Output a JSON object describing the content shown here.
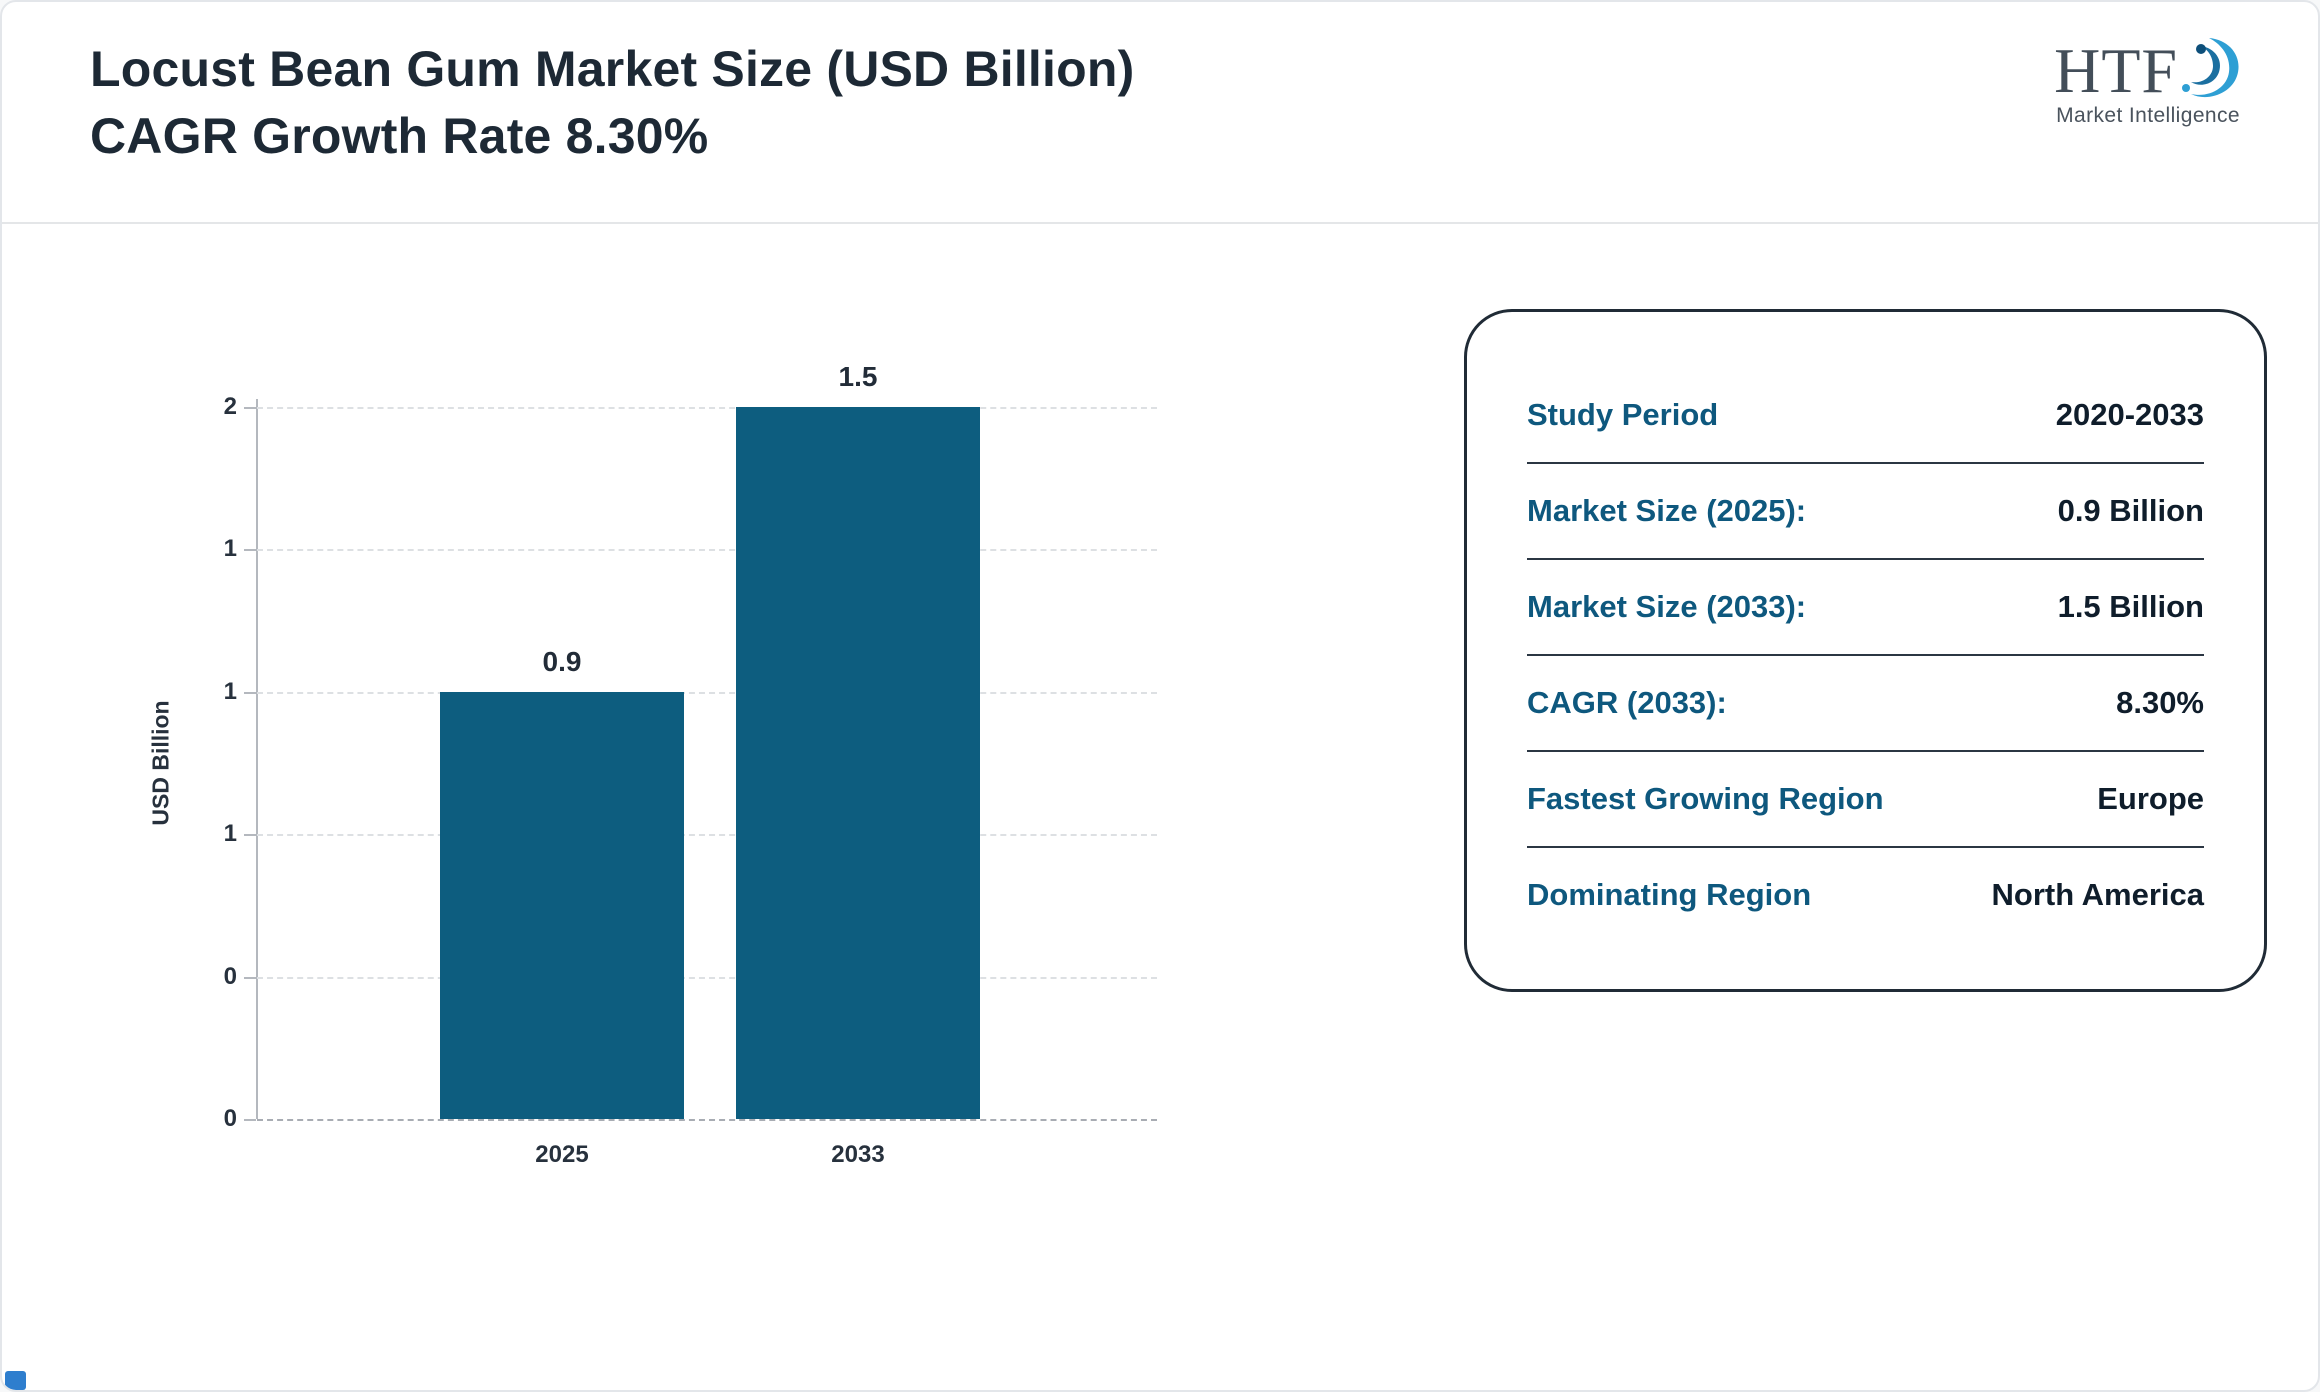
{
  "header": {
    "title_line1": "Locust Bean Gum Market Size (USD Billion)",
    "title_line2": "CAGR Growth Rate 8.30%",
    "logo": {
      "text": "HTF",
      "subtext": "Market Intelligence"
    }
  },
  "chart_data": {
    "type": "bar",
    "title": "Locust Bean Gum Market Size (USD Billion)",
    "categories": [
      "2025",
      "2033"
    ],
    "values": [
      0.9,
      1.5
    ],
    "xlabel": "",
    "ylabel": "USD Billion",
    "ylim": [
      0,
      1.5
    ],
    "ytick_labels_top_to_bottom": [
      "2",
      "1",
      "1",
      "1",
      "0",
      "0"
    ],
    "grid": "dashed-horizontal",
    "legend": "none",
    "bar_color": "#0d5d7f"
  },
  "summary_card": {
    "rows": [
      {
        "label": "Study Period",
        "value": "2020-2033"
      },
      {
        "label": "Market Size (2025):",
        "value": "0.9 Billion"
      },
      {
        "label": "Market Size (2033):",
        "value": "1.5 Billion"
      },
      {
        "label": "CAGR (2033):",
        "value": "8.30%"
      },
      {
        "label": "Fastest Growing Region",
        "value": "Europe"
      },
      {
        "label": "Dominating Region",
        "value": "North America"
      }
    ]
  },
  "colors": {
    "bar_teal": "#0d5d7f",
    "label_blue": "#0e587e",
    "value_dark": "#0f1d2b",
    "title_dark": "#1d2935",
    "logo_blue": "#2e9fd4",
    "corner_blue": "#2e7ece"
  }
}
